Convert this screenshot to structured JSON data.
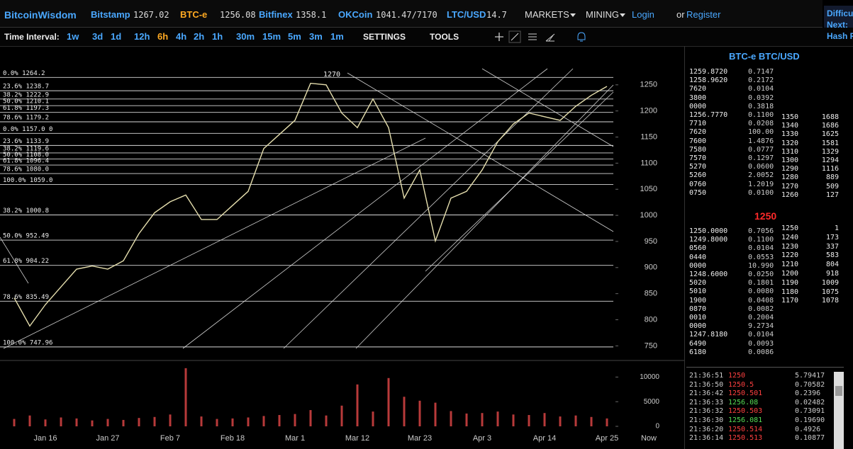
{
  "header": {
    "brand": "BitcoinWisdom",
    "tickers": [
      {
        "name": "Bitstamp",
        "price": "1267.02",
        "color": "#4aa8ff"
      },
      {
        "name": "BTC-e",
        "price": "1256.08",
        "color": "#ffaa22"
      },
      {
        "name": "Bitfinex",
        "price": "1358.1",
        "color": "#4aa8ff"
      },
      {
        "name": "OKCoin",
        "price": "1041.47/7170",
        "color": "#4aa8ff"
      },
      {
        "name": "LTC/USD",
        "price": "14.7",
        "color": "#4aa8ff"
      }
    ],
    "menus": [
      "MARKETS",
      "MINING"
    ],
    "login": "Login",
    "or": "or",
    "register": "Register",
    "side": [
      "Difficu",
      "Next:",
      "Hash R"
    ]
  },
  "toolbar": {
    "label": "Time Interval:",
    "intervals": [
      "1w",
      "3d",
      "1d",
      "12h",
      "6h",
      "4h",
      "2h",
      "1h",
      "30m",
      "15m",
      "5m",
      "3m",
      "1m"
    ],
    "active_interval": 4,
    "settings": "SETTINGS",
    "tools": "TOOLS"
  },
  "chart_data": [
    {
      "type": "line",
      "color": "#e6dfae",
      "annotation": "1270",
      "now_label": "Now",
      "categories": [
        null,
        null,
        "Jan 16",
        null,
        null,
        null,
        "Jan 27",
        null,
        null,
        null,
        "Feb 7",
        null,
        null,
        null,
        "Feb 18",
        null,
        null,
        null,
        "Mar 1",
        null,
        null,
        null,
        "Mar 12",
        null,
        null,
        null,
        "Mar 23",
        null,
        null,
        null,
        "Apr 3",
        null,
        null,
        null,
        "Apr 14",
        null,
        null,
        null,
        "Apr 25"
      ],
      "values": [
        842,
        788,
        829,
        863,
        897,
        903,
        897,
        913,
        965,
        1005,
        1026,
        1039,
        992,
        992,
        1019,
        1046,
        1128,
        1155,
        1182,
        1253,
        1250,
        1196,
        1168,
        1223,
        1168,
        1033,
        1087,
        951,
        1033,
        1046,
        1087,
        1141,
        1175,
        1196,
        1189,
        1182,
        1209,
        1230,
        1247
      ],
      "ylim": [
        722,
        1285
      ],
      "yticks": [
        750,
        800,
        850,
        900,
        950,
        1000,
        1050,
        1100,
        1150,
        1200,
        1250
      ],
      "fib_levels": [
        {
          "label": "0.0% 1264.2",
          "value": 1264.2
        },
        {
          "label": "23.6% 1238.7",
          "value": 1238.7
        },
        {
          "label": "38.2% 1222.9",
          "value": 1222.9
        },
        {
          "label": "50.0% 1210.1",
          "value": 1210.1
        },
        {
          "label": "61.8% 1197.3",
          "value": 1197.3
        },
        {
          "label": "78.6% 1179.2",
          "value": 1179.2
        },
        {
          "label": "0.0% 1157.0 0",
          "value": 1157.0
        },
        {
          "label": "23.6% 1133.9",
          "value": 1133.9
        },
        {
          "label": "38.2% 1119.6",
          "value": 1119.6
        },
        {
          "label": "50.0% 1108.0",
          "value": 1108.0
        },
        {
          "label": "61.8% 1096.4",
          "value": 1096.4
        },
        {
          "label": "78.6% 1080.0",
          "value": 1080.0
        },
        {
          "label": "100.0% 1059.0",
          "value": 1059.0
        },
        {
          "label": "38.2% 1000.8",
          "value": 1000.8
        },
        {
          "label": "50.0% 952.49",
          "value": 952.49
        },
        {
          "label": "61.8% 904.22",
          "value": 904.22
        },
        {
          "label": "78.6% 835.49",
          "value": 835.49
        },
        {
          "label": "100.0% 747.96",
          "value": 747.96
        }
      ]
    },
    {
      "type": "bar",
      "color": "#b83a3a",
      "categories": [
        null,
        null,
        "Jan 16",
        null,
        null,
        null,
        "Jan 27",
        null,
        null,
        null,
        "Feb 7",
        null,
        null,
        null,
        "Feb 18",
        null,
        null,
        null,
        "Mar 1",
        null,
        null,
        null,
        "Mar 12",
        null,
        null,
        null,
        "Mar 23",
        null,
        null,
        null,
        "Apr 3",
        null,
        null,
        null,
        "Apr 14",
        null,
        null,
        null,
        "Apr 25"
      ],
      "values": [
        1500,
        2200,
        1400,
        1800,
        1600,
        1200,
        1500,
        1300,
        1700,
        1900,
        2400,
        11800,
        2000,
        1500,
        1600,
        1800,
        2100,
        2300,
        2500,
        3300,
        2200,
        4200,
        8500,
        3000,
        9800,
        6000,
        5200,
        4800,
        3100,
        2600,
        2700,
        3000,
        2400,
        2300,
        2700,
        2000,
        2200,
        1900,
        1600
      ],
      "ylim": [
        0,
        12500
      ],
      "yticks": [
        0,
        5000,
        10000
      ]
    }
  ],
  "orderbook": {
    "title": "BTC-e BTC/USD",
    "last": "1250",
    "asks": [
      [
        "1259.8720",
        "0.7147"
      ],
      [
        "1258.9620",
        "0.2172"
      ],
      [
        "7620",
        "0.0104"
      ],
      [
        "3800",
        "0.0392"
      ],
      [
        "0000",
        "0.3818"
      ],
      [
        "1256.7770",
        "0.1100"
      ],
      [
        "7710",
        "0.0208"
      ],
      [
        "7620",
        "100.00"
      ],
      [
        "7600",
        "1.4876"
      ],
      [
        "7580",
        "0.0777"
      ],
      [
        "7570",
        "0.1297"
      ],
      [
        "5270",
        "0.0600"
      ],
      [
        "5260",
        "2.0052"
      ],
      [
        "0760",
        "1.2019"
      ],
      [
        "0750",
        "0.0100"
      ]
    ],
    "ask_depth": [
      [
        "1350",
        "1688"
      ],
      [
        "1340",
        "1686"
      ],
      [
        "1330",
        "1625"
      ],
      [
        "1320",
        "1581"
      ],
      [
        "1310",
        "1329"
      ],
      [
        "1300",
        "1294"
      ],
      [
        "1290",
        "1116"
      ],
      [
        "1280",
        "889"
      ],
      [
        "1270",
        "509"
      ],
      [
        "1260",
        "127"
      ]
    ],
    "bids": [
      [
        "1250.0000",
        "0.7056"
      ],
      [
        "1249.8000",
        "0.1100"
      ],
      [
        "0560",
        "0.0104"
      ],
      [
        "0440",
        "0.0553"
      ],
      [
        "0000",
        "10.990"
      ],
      [
        "1248.6000",
        "0.0250"
      ],
      [
        "5020",
        "0.1801"
      ],
      [
        "5010",
        "0.0080"
      ],
      [
        "1900",
        "0.0408"
      ],
      [
        "0870",
        "0.0082"
      ],
      [
        "0010",
        "0.2004"
      ],
      [
        "0000",
        "9.2734"
      ],
      [
        "1247.8180",
        "0.0104"
      ],
      [
        "6490",
        "0.0093"
      ],
      [
        "6180",
        "0.0086"
      ]
    ],
    "bid_depth": [
      [
        "1250",
        "1"
      ],
      [
        "1240",
        "173"
      ],
      [
        "1230",
        "337"
      ],
      [
        "1220",
        "583"
      ],
      [
        "1210",
        "804"
      ],
      [
        "1200",
        "918"
      ],
      [
        "1190",
        "1009"
      ],
      [
        "1180",
        "1075"
      ],
      [
        "1170",
        "1078"
      ]
    ]
  },
  "trades": [
    {
      "time": "21:36:51",
      "price": "1250",
      "amount": "5.79417",
      "color": "#ff4040"
    },
    {
      "time": "21:36:50",
      "price": "1250.5",
      "amount": "0.70582",
      "color": "#ff4040"
    },
    {
      "time": "21:36:42",
      "price": "1250.501",
      "amount": "0.2396",
      "color": "#ff4040"
    },
    {
      "time": "21:36:33",
      "price": "1256.08",
      "amount": "0.02482",
      "color": "#55dd55"
    },
    {
      "time": "21:36:32",
      "price": "1250.503",
      "amount": "0.73091",
      "color": "#ff4040"
    },
    {
      "time": "21:36:30",
      "price": "1256.081",
      "amount": "0.19690",
      "color": "#55dd55"
    },
    {
      "time": "21:36:20",
      "price": "1250.514",
      "amount": "0.4926",
      "color": "#ff4040"
    },
    {
      "time": "21:36:14",
      "price": "1250.513",
      "amount": "0.10877",
      "color": "#ff4040"
    }
  ]
}
